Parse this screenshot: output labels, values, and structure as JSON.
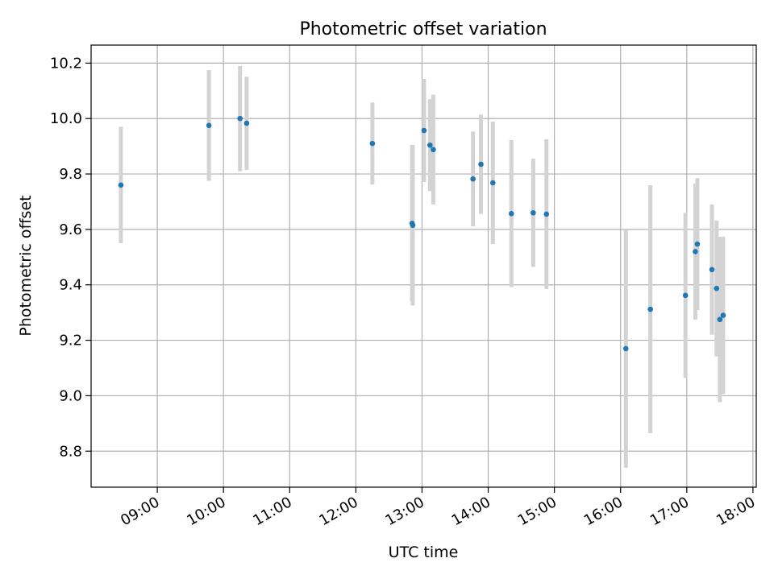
{
  "chart_data": {
    "type": "scatter",
    "title": "Photometric offset variation",
    "xlabel": "UTC time",
    "ylabel": "Photometric offset",
    "x_unit": "UTC time of day (hours)",
    "xlim": [
      8.0,
      18.05
    ],
    "ylim": [
      8.67,
      10.265
    ],
    "x_ticks": [
      {
        "value": 9,
        "label": "09:00"
      },
      {
        "value": 10,
        "label": "10:00"
      },
      {
        "value": 11,
        "label": "11:00"
      },
      {
        "value": 12,
        "label": "12:00"
      },
      {
        "value": 13,
        "label": "13:00"
      },
      {
        "value": 14,
        "label": "14:00"
      },
      {
        "value": 15,
        "label": "15:00"
      },
      {
        "value": 16,
        "label": "16:00"
      },
      {
        "value": 17,
        "label": "17:00"
      },
      {
        "value": 18,
        "label": "18:00"
      }
    ],
    "y_ticks": [
      {
        "value": 8.8,
        "label": "8.8"
      },
      {
        "value": 9.0,
        "label": "9.0"
      },
      {
        "value": 9.2,
        "label": "9.2"
      },
      {
        "value": 9.4,
        "label": "9.4"
      },
      {
        "value": 9.6,
        "label": "9.6"
      },
      {
        "value": 9.8,
        "label": "9.8"
      },
      {
        "value": 10.0,
        "label": "10.0"
      },
      {
        "value": 10.2,
        "label": "10.2"
      }
    ],
    "grid": true,
    "series": [
      {
        "marker_color": "#1f77b4",
        "errorbar_color": "#d3d3d3",
        "points": [
          {
            "x": 8.45,
            "y": 9.76,
            "yerr": 0.21
          },
          {
            "x": 9.78,
            "y": 9.975,
            "yerr": 0.2
          },
          {
            "x": 10.25,
            "y": 10.0,
            "yerr": 0.19
          },
          {
            "x": 10.35,
            "y": 9.983,
            "yerr": 0.168
          },
          {
            "x": 12.25,
            "y": 9.91,
            "yerr": 0.148
          },
          {
            "x": 12.85,
            "y": 9.622,
            "yerr": 0.283
          },
          {
            "x": 12.86,
            "y": 9.615,
            "yerr": 0.29
          },
          {
            "x": 13.03,
            "y": 9.957,
            "yerr": 0.186
          },
          {
            "x": 13.12,
            "y": 9.904,
            "yerr": 0.166
          },
          {
            "x": 13.17,
            "y": 9.888,
            "yerr": 0.198
          },
          {
            "x": 13.77,
            "y": 9.782,
            "yerr": 0.171
          },
          {
            "x": 13.89,
            "y": 9.835,
            "yerr": 0.179
          },
          {
            "x": 14.07,
            "y": 9.768,
            "yerr": 0.221
          },
          {
            "x": 14.35,
            "y": 9.657,
            "yerr": 0.265
          },
          {
            "x": 14.68,
            "y": 9.66,
            "yerr": 0.195
          },
          {
            "x": 14.88,
            "y": 9.655,
            "yerr": 0.27
          },
          {
            "x": 16.08,
            "y": 9.17,
            "yerr": 0.43
          },
          {
            "x": 16.45,
            "y": 9.312,
            "yerr": 0.447
          },
          {
            "x": 16.98,
            "y": 9.362,
            "yerr": 0.298
          },
          {
            "x": 17.13,
            "y": 9.52,
            "yerr": 0.245
          },
          {
            "x": 17.16,
            "y": 9.547,
            "yerr": 0.238
          },
          {
            "x": 17.38,
            "y": 9.455,
            "yerr": 0.235
          },
          {
            "x": 17.45,
            "y": 9.387,
            "yerr": 0.245
          },
          {
            "x": 17.5,
            "y": 9.275,
            "yerr": 0.298
          },
          {
            "x": 17.55,
            "y": 9.29,
            "yerr": 0.284
          }
        ]
      }
    ]
  }
}
